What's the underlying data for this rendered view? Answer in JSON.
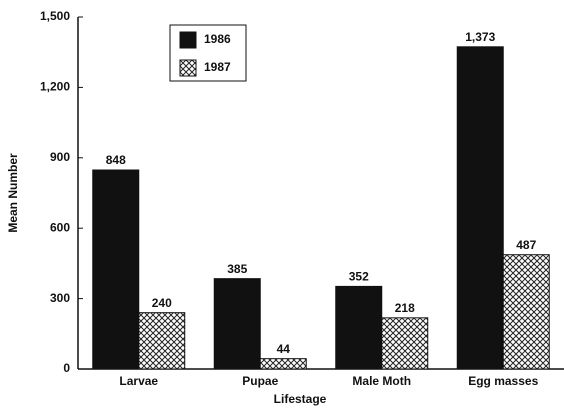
{
  "chart_data": {
    "type": "bar",
    "x_label": "Lifestage",
    "y_label": "Mean Number",
    "categories": [
      "Larvae",
      "Pupae",
      "Male Moth",
      "Egg masses"
    ],
    "series": [
      {
        "name": "1986",
        "color": "#111111",
        "hatch": false,
        "values": [
          848,
          385,
          352,
          1373
        ],
        "value_labels": [
          "848",
          "385",
          "352",
          "1,373"
        ]
      },
      {
        "name": "1987",
        "color": "#222222",
        "hatch": true,
        "values": [
          240,
          44,
          218,
          487
        ]
      }
    ],
    "ylim": [
      0,
      1500
    ],
    "yticks": [
      0,
      300,
      600,
      900,
      {
        "value": 1200,
        "label": "1,200"
      },
      {
        "value": 1500,
        "label": "1,500"
      }
    ],
    "legend": "upper-left"
  }
}
